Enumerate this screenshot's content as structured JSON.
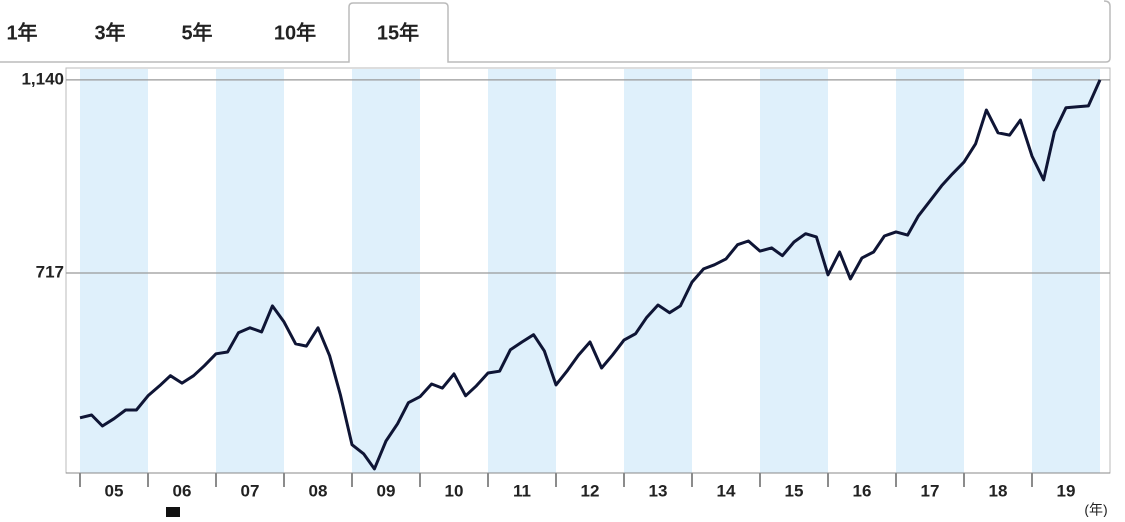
{
  "tabs": [
    {
      "label": "1年"
    },
    {
      "label": "3年"
    },
    {
      "label": "5年"
    },
    {
      "label": "10年"
    },
    {
      "label": "15年",
      "selected": true
    }
  ],
  "chart_data": {
    "type": "line",
    "x_unit_label": "(年)",
    "xlim": [
      2005,
      2020
    ],
    "xticks": [
      {
        "value": 2005.5,
        "label": "05"
      },
      {
        "value": 2006.5,
        "label": "06"
      },
      {
        "value": 2007.5,
        "label": "07"
      },
      {
        "value": 2008.5,
        "label": "08"
      },
      {
        "value": 2009.5,
        "label": "09"
      },
      {
        "value": 2010.5,
        "label": "10"
      },
      {
        "value": 2011.5,
        "label": "11"
      },
      {
        "value": 2012.5,
        "label": "12"
      },
      {
        "value": 2013.5,
        "label": "13"
      },
      {
        "value": 2014.5,
        "label": "14"
      },
      {
        "value": 2015.5,
        "label": "15"
      },
      {
        "value": 2016.5,
        "label": "16"
      },
      {
        "value": 2017.5,
        "label": "17"
      },
      {
        "value": 2018.5,
        "label": "18"
      },
      {
        "value": 2019.5,
        "label": "19"
      }
    ],
    "ylim": [
      279,
      1166
    ],
    "yticks": [
      717,
      {
        "value": 1140,
        "label": "1,140"
      }
    ],
    "grid": true,
    "band_color": "#dff0fb",
    "series": [
      {
        "color": "#0f1535",
        "x": [
          2005,
          2005.17,
          2005.33,
          2005.5,
          2005.67,
          2005.83,
          2006,
          2006.17,
          2006.33,
          2006.5,
          2006.67,
          2006.83,
          2007,
          2007.17,
          2007.33,
          2007.5,
          2007.67,
          2007.83,
          2008,
          2008.17,
          2008.33,
          2008.5,
          2008.67,
          2008.83,
          2009,
          2009.17,
          2009.33,
          2009.5,
          2009.67,
          2009.83,
          2010,
          2010.17,
          2010.33,
          2010.5,
          2010.67,
          2010.83,
          2011,
          2011.17,
          2011.33,
          2011.5,
          2011.67,
          2011.83,
          2012,
          2012.17,
          2012.33,
          2012.5,
          2012.67,
          2012.83,
          2013,
          2013.17,
          2013.33,
          2013.5,
          2013.67,
          2013.83,
          2014,
          2014.17,
          2014.33,
          2014.5,
          2014.67,
          2014.83,
          2015,
          2015.17,
          2015.33,
          2015.5,
          2015.67,
          2015.83,
          2016,
          2016.17,
          2016.33,
          2016.5,
          2016.67,
          2016.83,
          2017,
          2017.17,
          2017.33,
          2017.5,
          2017.67,
          2017.83,
          2018,
          2018.17,
          2018.33,
          2018.5,
          2018.67,
          2018.83,
          2019,
          2019.17,
          2019.33,
          2019.5,
          2019.67,
          2019.83,
          2020
        ],
        "values": [
          400,
          406,
          382,
          398,
          417,
          417,
          448,
          470,
          492,
          476,
          492,
          514,
          540,
          544,
          586,
          597,
          588,
          645,
          610,
          562,
          557,
          597,
          536,
          450,
          341,
          321,
          288,
          349,
          387,
          433,
          446,
          474,
          465,
          496,
          448,
          470,
          498,
          502,
          549,
          566,
          582,
          546,
          472,
          504,
          537,
          566,
          509,
          537,
          570,
          584,
          619,
          647,
          630,
          645,
          697,
          726,
          735,
          748,
          779,
          787,
          765,
          772,
          755,
          785,
          803,
          796,
          713,
          763,
          704,
          750,
          763,
          798,
          807,
          800,
          842,
          875,
          908,
          934,
          960,
          1000,
          1074,
          1024,
          1019,
          1052,
          973,
          921,
          1026,
          1079,
          1081,
          1083,
          1140
        ]
      }
    ]
  }
}
